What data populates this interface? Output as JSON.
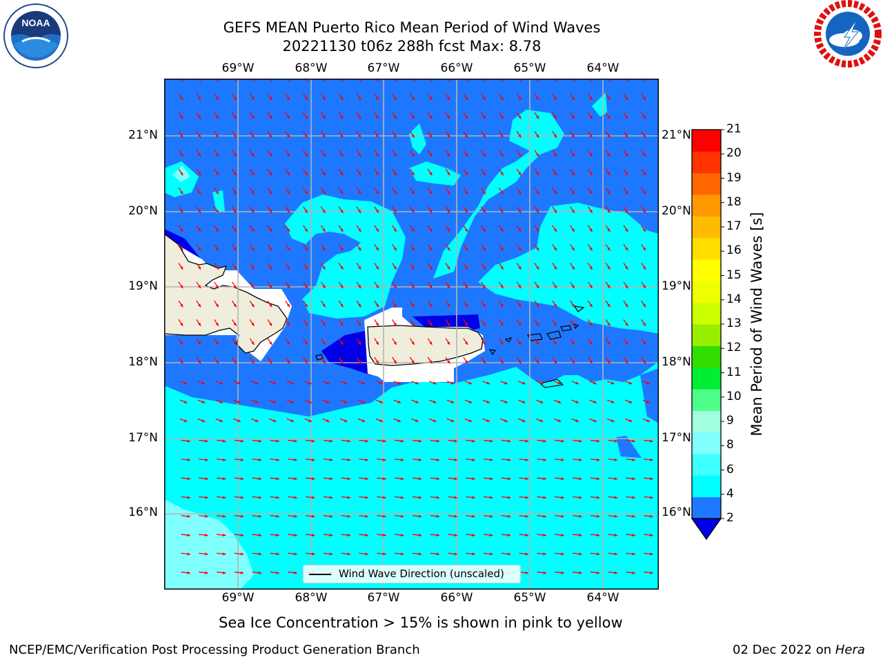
{
  "header": {
    "title_line1": "GEFS MEAN Puerto Rico Mean Period of Wind Waves",
    "title_line2": "20221130 t06z 288h fcst   Max: 8.78"
  },
  "logos": {
    "left": "noara-logo",
    "right": "nws-logo"
  },
  "map": {
    "lon_labels": [
      "69°W",
      "68°W",
      "67°W",
      "66°W",
      "65°W",
      "64°W"
    ],
    "lat_labels": [
      "21°N",
      "20°N",
      "19°N",
      "18°N",
      "17°N",
      "16°N"
    ],
    "legend_label": "Wind Wave Direction (unscaled)",
    "land_color": "#efeedc",
    "arrow_color": "#ff0000"
  },
  "colorbar": {
    "title": "Mean Period of Wind Waves [s]",
    "ticks": [
      "21",
      "20",
      "19",
      "18",
      "17",
      "16",
      "15",
      "14",
      "13",
      "12",
      "11",
      "10",
      "9",
      "8",
      "6",
      "4",
      "2"
    ],
    "colors": [
      "#0000e6",
      "#1e78ff",
      "#00ffff",
      "#40ffff",
      "#80ffff",
      "#a0ffe0",
      "#4dff88",
      "#00ee33",
      "#33dd00",
      "#99ee00",
      "#ccff00",
      "#eeff00",
      "#ffff00",
      "#ffdd00",
      "#ffbb00",
      "#ff9900",
      "#ff6600",
      "#ff3300",
      "#ff0000"
    ]
  },
  "footer": {
    "note": "Sea Ice Concentration > 15% is shown in pink to yellow",
    "left": "NCEP/EMC/Verification Post Processing Product Generation Branch",
    "date": "02 Dec 2022 on ",
    "host": "Hera"
  }
}
